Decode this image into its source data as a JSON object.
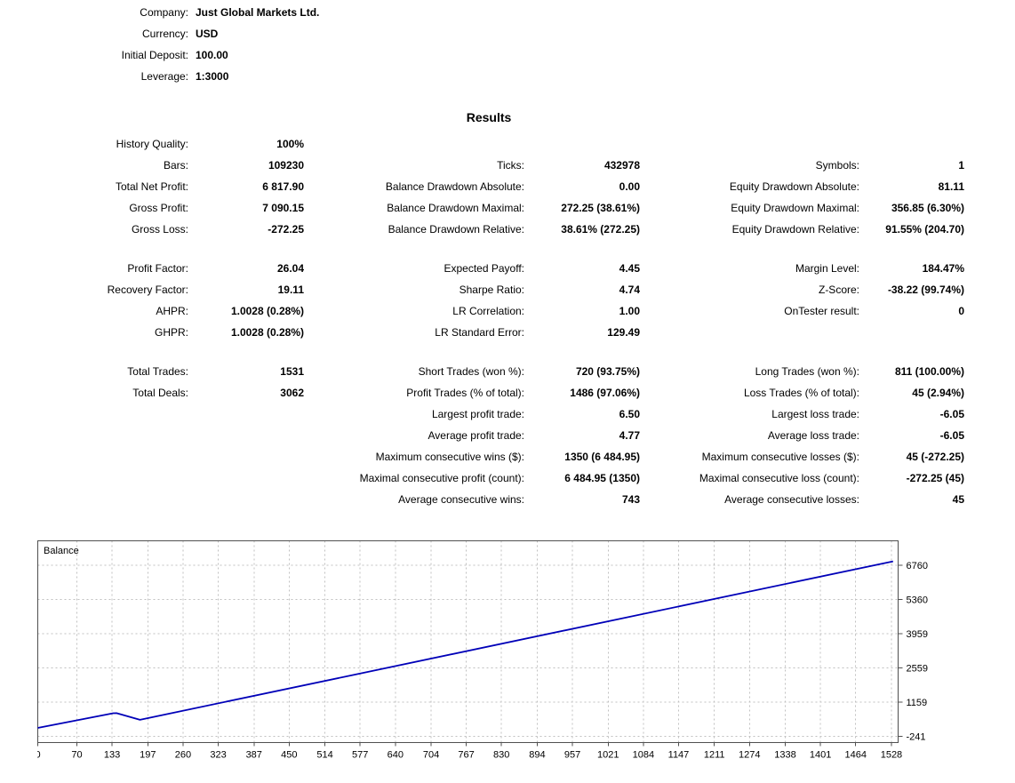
{
  "header": {
    "rows": [
      {
        "label": "Company:",
        "value": "Just Global Markets Ltd."
      },
      {
        "label": "Currency:",
        "value": "USD"
      },
      {
        "label": "Initial Deposit:",
        "value": "100.00"
      },
      {
        "label": "Leverage:",
        "value": "1:3000"
      }
    ]
  },
  "results": {
    "title": "Results",
    "sections": [
      {
        "rows": [
          [
            "History Quality:",
            "100%",
            "",
            "",
            "",
            ""
          ],
          [
            "Bars:",
            "109230",
            "Ticks:",
            "432978",
            "Symbols:",
            "1"
          ],
          [
            "Total Net Profit:",
            "6 817.90",
            "Balance Drawdown Absolute:",
            "0.00",
            "Equity Drawdown Absolute:",
            "81.11"
          ],
          [
            "Gross Profit:",
            "7 090.15",
            "Balance Drawdown Maximal:",
            "272.25 (38.61%)",
            "Equity Drawdown Maximal:",
            "356.85 (6.30%)"
          ],
          [
            "Gross Loss:",
            "-272.25",
            "Balance Drawdown Relative:",
            "38.61% (272.25)",
            "Equity Drawdown Relative:",
            "91.55% (204.70)"
          ]
        ]
      },
      {
        "rows": [
          [
            "Profit Factor:",
            "26.04",
            "Expected Payoff:",
            "4.45",
            "Margin Level:",
            "184.47%"
          ],
          [
            "Recovery Factor:",
            "19.11",
            "Sharpe Ratio:",
            "4.74",
            "Z-Score:",
            "-38.22 (99.74%)"
          ],
          [
            "AHPR:",
            "1.0028 (0.28%)",
            "LR Correlation:",
            "1.00",
            "OnTester result:",
            "0"
          ],
          [
            "GHPR:",
            "1.0028 (0.28%)",
            "LR Standard Error:",
            "129.49",
            "",
            ""
          ]
        ]
      },
      {
        "rows": [
          [
            "Total Trades:",
            "1531",
            "Short Trades (won %):",
            "720 (93.75%)",
            "Long Trades (won %):",
            "811 (100.00%)"
          ],
          [
            "Total Deals:",
            "3062",
            "Profit Trades (% of total):",
            "1486 (97.06%)",
            "Loss Trades (% of total):",
            "45 (2.94%)"
          ],
          [
            "",
            "",
            "Largest profit trade:",
            "6.50",
            "Largest loss trade:",
            "-6.05"
          ],
          [
            "",
            "",
            "Average profit trade:",
            "4.77",
            "Average loss trade:",
            "-6.05"
          ],
          [
            "",
            "",
            "Maximum consecutive wins ($):",
            "1350 (6 484.95)",
            "Maximum consecutive losses ($):",
            "45 (-272.25)"
          ],
          [
            "",
            "",
            "Maximal consecutive profit (count):",
            "6 484.95 (1350)",
            "Maximal consecutive loss (count):",
            "-272.25 (45)"
          ],
          [
            "",
            "",
            "Average consecutive wins:",
            "743",
            "Average consecutive losses:",
            "45"
          ]
        ]
      }
    ]
  },
  "chart_data": {
    "type": "line",
    "title": "Balance",
    "xlabel": "",
    "ylabel": "",
    "x_range": [
      0,
      1540
    ],
    "y_range": [
      -500,
      7760
    ],
    "x_ticks": [
      0,
      70,
      133,
      197,
      260,
      323,
      387,
      450,
      514,
      577,
      640,
      704,
      767,
      830,
      894,
      957,
      1021,
      1084,
      1147,
      1211,
      1274,
      1338,
      1401,
      1464,
      1528
    ],
    "y_ticks": [
      6760,
      5360,
      3959,
      2559,
      1159,
      -241
    ],
    "grid": true,
    "legend_position": "top-left-inside",
    "series": [
      {
        "name": "Balance",
        "color": "#0000b8",
        "points": [
          [
            0,
            100
          ],
          [
            135,
            700
          ],
          [
            141,
            705
          ],
          [
            183,
            433
          ],
          [
            1531,
            6918
          ]
        ]
      }
    ],
    "colors": {
      "grid": "#c0c0c0",
      "frame": "#505050",
      "text": "#000000"
    }
  }
}
